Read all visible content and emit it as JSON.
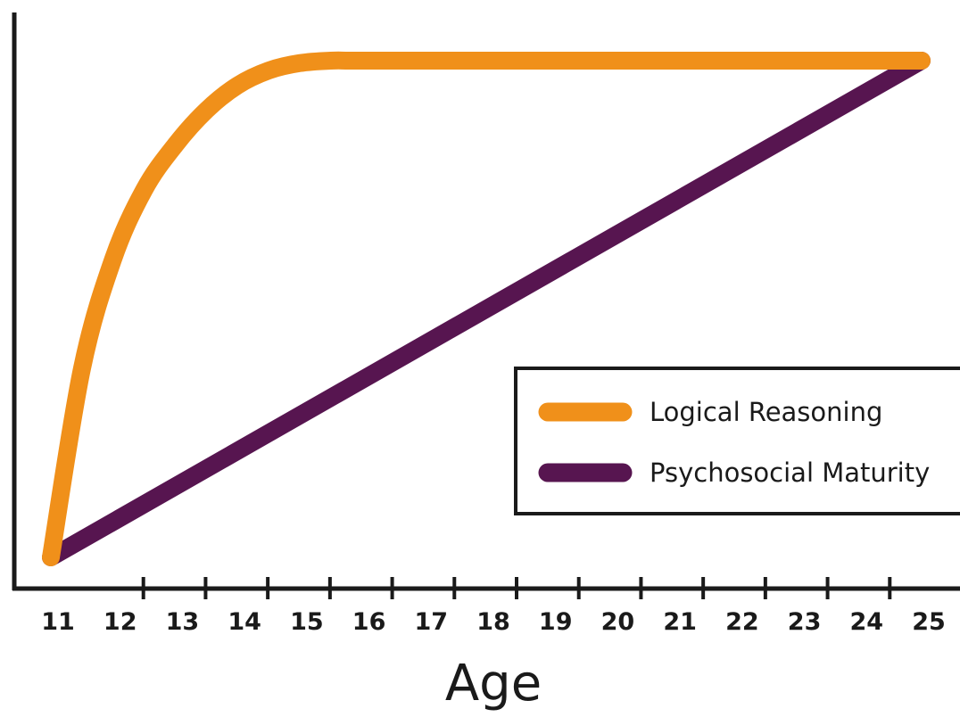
{
  "chart_data": {
    "type": "line",
    "xlabel": "Age",
    "ylabel": "",
    "x_ticks": [
      11,
      12,
      13,
      14,
      15,
      16,
      17,
      18,
      19,
      20,
      21,
      22,
      23,
      24,
      25
    ],
    "xlim": [
      11,
      25
    ],
    "ylim": [
      0,
      1
    ],
    "grid": false,
    "legend_position": "right",
    "series": [
      {
        "name": "Logical Reasoning",
        "color": "#F0901A",
        "x": [
          11,
          11.5,
          12,
          12.5,
          13,
          13.5,
          14,
          14.5,
          15,
          15.5,
          16,
          18,
          20,
          22,
          24,
          25
        ],
        "y": [
          0,
          0.38,
          0.6,
          0.74,
          0.83,
          0.9,
          0.95,
          0.98,
          0.995,
          1.0,
          1.0,
          1.0,
          1.0,
          1.0,
          1.0,
          1.0
        ]
      },
      {
        "name": "Psychosocial Maturity",
        "color": "#571550",
        "x": [
          11,
          25
        ],
        "y": [
          0,
          1
        ]
      }
    ]
  }
}
